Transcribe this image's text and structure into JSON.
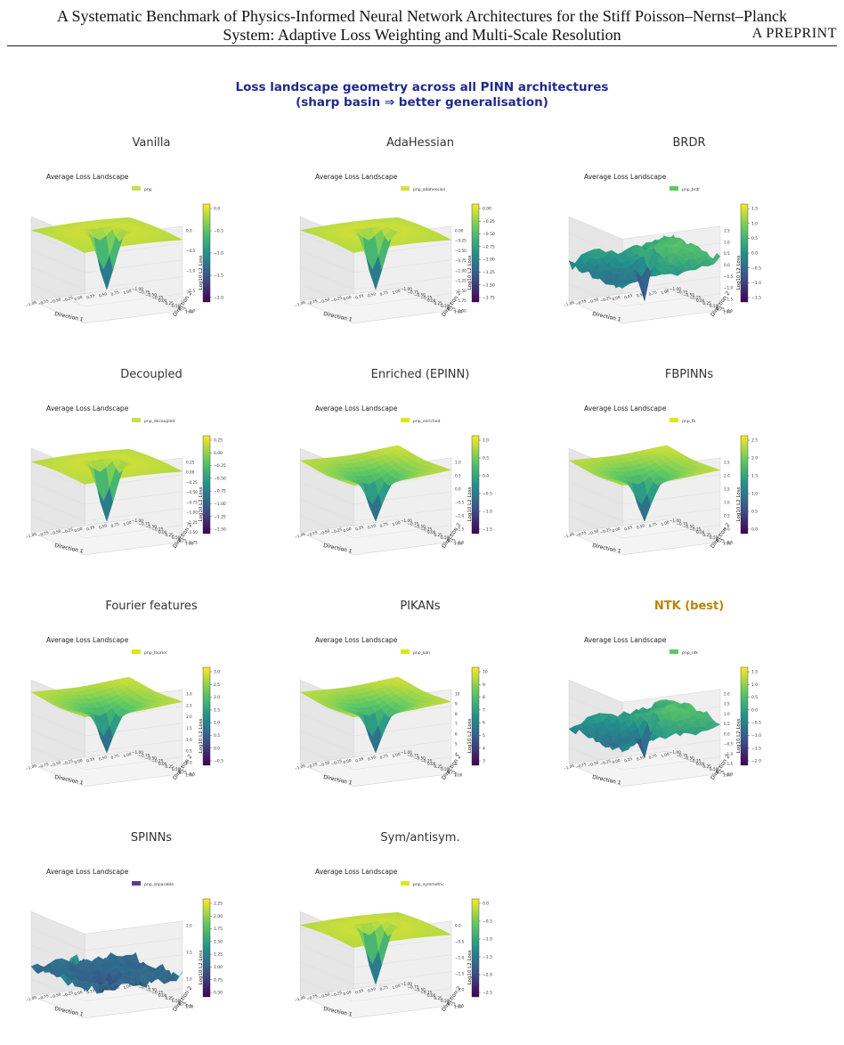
{
  "header": {
    "line1": "A Systematic Benchmark of Physics-Informed Neural Network Architectures for the Stiff Poisson–Nernst–Planck",
    "line2": "System: Adaptive Loss Weighting and Multi-Scale Resolution",
    "tag": "A PREPRINT"
  },
  "figure": {
    "title_line1": "Loss landscape geometry across all PINN architectures",
    "title_line2": "(sharp basin ⇒ better generalisation)",
    "highlight_color": "#b8860b",
    "title_color": "#1f2a8a"
  },
  "chart_data": [
    {
      "type": "surface",
      "panel_title": "Vanilla",
      "title": "Average Loss Landscape",
      "legend": "pnp",
      "legend_color": "#c9dc57",
      "xlabel": "Direction 1",
      "ylabel": "Direction 2",
      "zlabel": "Log10 L2 Loss",
      "zticks": [
        "0.0",
        "−0.5",
        "−1.0",
        "−1.5",
        "−2.0"
      ],
      "cbar_ticks": [
        "0.0",
        "−0.5",
        "−1.0",
        "−1.5",
        "−2.0"
      ],
      "xticks": [
        "−1.00",
        "−0.75",
        "−0.50",
        "−0.25",
        "0.00",
        "0.25",
        "0.50",
        "0.75",
        "1.00"
      ],
      "yticks": [
        "1.00",
        "0.75",
        "0.50",
        "0.25",
        "0.00",
        "−0.25",
        "−0.50",
        "−0.75",
        "−1.00"
      ],
      "shape": "basin",
      "best": false
    },
    {
      "type": "surface",
      "panel_title": "AdaHessian",
      "title": "Average Loss Landscape",
      "legend": "pnp_adahessian",
      "legend_color": "#d7df45",
      "xlabel": "Direction 1",
      "ylabel": "Direction 2",
      "zlabel": "Log10 L2 Loss",
      "zticks": [
        "0.00",
        "−0.25",
        "−0.50",
        "−0.75",
        "−1.00",
        "−1.25",
        "−1.50",
        "−1.75",
        "−2.00"
      ],
      "cbar_ticks": [
        "0.00",
        "−0.25",
        "−0.50",
        "−0.75",
        "−1.00",
        "−1.25",
        "−1.50",
        "−1.75"
      ],
      "xticks": [
        "−1.00",
        "−0.75",
        "−0.50",
        "−0.25",
        "0.00",
        "0.25",
        "0.50",
        "0.75",
        "1.00"
      ],
      "yticks": [
        "1.00",
        "0.75",
        "0.50",
        "0.25",
        "0.00",
        "−0.25",
        "−0.50",
        "−0.75",
        "−1.00"
      ],
      "shape": "basin",
      "best": false
    },
    {
      "type": "surface",
      "panel_title": "BRDR",
      "title": "Average Loss Landscape",
      "legend": "pnp_brdr",
      "legend_color": "#5ec962",
      "xlabel": "Direction 1",
      "ylabel": "Direction 2",
      "zlabel": "Log10 L2 Loss",
      "zticks": [
        "1.5",
        "1.0",
        "0.5",
        "0.0",
        "−0.5",
        "−1.0",
        "−1.5",
        "−2.0"
      ],
      "cbar_ticks": [
        "1.5",
        "1.0",
        "0.5",
        "0.0",
        "−0.5",
        "−1.0",
        "−1.5"
      ],
      "xticks": [
        "−1.00",
        "−0.75",
        "−0.50",
        "−0.25",
        "0.00",
        "0.25",
        "0.50",
        "0.75",
        "1.00"
      ],
      "yticks": [
        "1.00",
        "0.75",
        "0.50",
        "0.25",
        "0.00",
        "−0.25",
        "−0.50",
        "−0.75",
        "−1.00"
      ],
      "shape": "rough",
      "best": false
    },
    {
      "type": "surface",
      "panel_title": "Decoupled",
      "title": "Average Loss Landscape",
      "legend": "pnp_decoupled",
      "legend_color": "#c9dc57",
      "xlabel": "Direction 1",
      "ylabel": "Direction 2",
      "zlabel": "Log10 L2 Loss",
      "zticks": [
        "0.25",
        "0.00",
        "−0.25",
        "−0.50",
        "−0.75",
        "−1.00",
        "−1.25",
        "−1.50",
        "−1.75"
      ],
      "cbar_ticks": [
        "0.25",
        "0.00",
        "−0.25",
        "−0.50",
        "−0.75",
        "−1.00",
        "−1.25",
        "−1.50"
      ],
      "xticks": [
        "−1.00",
        "−0.75",
        "−0.50",
        "−0.25",
        "0.00",
        "0.25",
        "0.50",
        "0.75",
        "1.00"
      ],
      "yticks": [
        "1.00",
        "0.75",
        "0.50",
        "0.25",
        "0.00",
        "−0.25",
        "−0.50",
        "−0.75",
        "−1.00"
      ],
      "shape": "basin",
      "best": false
    },
    {
      "type": "surface",
      "panel_title": "Enriched (EPINN)",
      "title": "Average Loss Landscape",
      "legend": "pnp_enriched",
      "legend_color": "#e3e418",
      "xlabel": "Direction 1",
      "ylabel": "Direction 2",
      "zlabel": "Log10 L2 Loss",
      "zticks": [
        "1.0",
        "0.5",
        "0.0",
        "−0.5",
        "−1.0",
        "−1.5",
        "−2.0"
      ],
      "cbar_ticks": [
        "1.0",
        "0.5",
        "0.0",
        "−0.5",
        "−1.0",
        "−1.5"
      ],
      "xticks": [
        "−1.00",
        "−0.75",
        "−0.50",
        "−0.25",
        "0.00",
        "0.25",
        "0.50",
        "0.75",
        "1.00"
      ],
      "yticks": [
        "1.00",
        "0.75",
        "0.50",
        "0.25",
        "0.00",
        "−0.25",
        "−0.50",
        "−0.75",
        "−1.00"
      ],
      "shape": "funnel",
      "best": false
    },
    {
      "type": "surface",
      "panel_title": "FBPINNs",
      "title": "Average Loss Landscape",
      "legend": "pnp_fb",
      "legend_color": "#e3e418",
      "xlabel": "Direction 1",
      "ylabel": "Direction 2",
      "zlabel": "Log10 L2 Loss",
      "zticks": [
        "2.5",
        "2.0",
        "1.5",
        "1.0",
        "0.5",
        "0.0",
        "−0.5"
      ],
      "cbar_ticks": [
        "2.5",
        "2.0",
        "1.5",
        "1.0",
        "0.5",
        "0.0"
      ],
      "xticks": [
        "−1.00",
        "−0.75",
        "−0.50",
        "−0.25",
        "0.00",
        "0.25",
        "0.50",
        "0.75",
        "1.00"
      ],
      "yticks": [
        "1.00",
        "0.75",
        "0.50",
        "0.25",
        "0.00",
        "−0.25",
        "−0.50",
        "−0.75",
        "−1.00"
      ],
      "shape": "funnel",
      "best": false
    },
    {
      "type": "surface",
      "panel_title": "Fourier features",
      "title": "Average Loss Landscape",
      "legend": "pnp_fourier",
      "legend_color": "#e3e418",
      "xlabel": "Direction 1",
      "ylabel": "Direction 2",
      "zlabel": "Log10 L2 Loss",
      "zticks": [
        "3.0",
        "2.5",
        "2.0",
        "1.5",
        "1.0",
        "0.5",
        "0.0",
        "−0.5"
      ],
      "cbar_ticks": [
        "3.0",
        "2.5",
        "2.0",
        "1.5",
        "1.0",
        "0.5",
        "0.0",
        "−0.5"
      ],
      "xticks": [
        "−1.00",
        "−0.75",
        "−0.50",
        "−0.25",
        "0.00",
        "0.25",
        "0.50",
        "0.75",
        "1.00"
      ],
      "yticks": [
        "1.00",
        "0.75",
        "0.50",
        "0.25",
        "0.00",
        "−0.25",
        "−0.50",
        "−0.75",
        "−1.00"
      ],
      "shape": "funnel",
      "best": false
    },
    {
      "type": "surface",
      "panel_title": "PIKANs",
      "title": "Average Loss Landscape",
      "legend": "pnp_kan",
      "legend_color": "#e3e418",
      "xlabel": "Direction 1",
      "ylabel": "Direction 2",
      "zlabel": "Log10 L2 Loss",
      "zticks": [
        "10",
        "9",
        "8",
        "7",
        "6",
        "5",
        "4",
        "3",
        "2"
      ],
      "cbar_ticks": [
        "10",
        "9",
        "8",
        "7",
        "6",
        "5",
        "4",
        "3"
      ],
      "xticks": [
        "−1.00",
        "−0.75",
        "−0.50",
        "−0.25",
        "0.00",
        "0.25",
        "0.50",
        "0.75",
        "1.00"
      ],
      "yticks": [
        "1.00",
        "0.75",
        "0.50",
        "0.25",
        "0.00",
        "−0.25",
        "−0.50",
        "−0.75",
        "−1.00"
      ],
      "shape": "funnel",
      "best": false
    },
    {
      "type": "surface",
      "panel_title": "NTK (best)",
      "title": "Average Loss Landscape",
      "legend": "pnp_ntk",
      "legend_color": "#5ec962",
      "xlabel": "Direction 1",
      "ylabel": "Direction 2",
      "zlabel": "Log10 L2 Loss",
      "zticks": [
        "2.0",
        "1.5",
        "1.0",
        "0.5",
        "0.0",
        "−0.5",
        "−1.0",
        "−1.5",
        "−2.0"
      ],
      "cbar_ticks": [
        "1.5",
        "1.0",
        "0.5",
        "0.0",
        "−0.5",
        "−1.0",
        "−1.5",
        "−2.0"
      ],
      "xticks": [
        "−1.00",
        "−0.75",
        "−0.50",
        "−0.25",
        "0.00",
        "0.25",
        "0.50",
        "0.75",
        "1.00"
      ],
      "yticks": [
        "1.00",
        "0.75",
        "0.50",
        "0.25",
        "0.00",
        "−0.25",
        "−0.50",
        "−0.75",
        "−1.00"
      ],
      "shape": "rough",
      "best": true
    },
    {
      "type": "surface",
      "panel_title": "SPINNs",
      "title": "Average Loss Landscape",
      "legend": "pnp_separable",
      "legend_color": "#5a3d8f",
      "xlabel": "Direction 1",
      "ylabel": "Direction 2",
      "zlabel": "Log10 L2 Loss",
      "zticks": [
        "2.0",
        "1.5",
        "1.0",
        "0.5"
      ],
      "cbar_ticks": [
        "2.25",
        "2.00",
        "1.75",
        "1.50",
        "1.25",
        "1.00",
        "0.75",
        "0.50"
      ],
      "xticks": [
        "−1.00",
        "−0.75",
        "−0.50",
        "−0.25",
        "0.00",
        "0.25",
        "0.50",
        "0.75",
        "1.00"
      ],
      "yticks": [
        "1.00",
        "0.75",
        "0.50",
        "0.25",
        "0.00",
        "−0.25",
        "−0.50",
        "−0.75",
        "−1.00"
      ],
      "shape": "spiky",
      "best": false
    },
    {
      "type": "surface",
      "panel_title": "Sym/antisym.",
      "title": "Average Loss Landscape",
      "legend": "pnp_symmetric",
      "legend_color": "#e3e418",
      "xlabel": "Direction 1",
      "ylabel": "Direction 2",
      "zlabel": "Log10 L2 Loss",
      "zticks": [
        "0.0",
        "−0.5",
        "−1.0",
        "−1.5",
        "−2.0",
        "−2.5"
      ],
      "cbar_ticks": [
        "0.0",
        "−0.5",
        "−1.0",
        "−1.5",
        "−2.0",
        "−2.5"
      ],
      "xticks": [
        "−1.00",
        "−0.75",
        "−0.50",
        "−0.25",
        "0.00",
        "0.25",
        "0.50",
        "0.75",
        "1.00"
      ],
      "yticks": [
        "1.00",
        "0.75",
        "0.50",
        "0.25",
        "0.00",
        "−0.25",
        "−0.50",
        "−0.75",
        "−1.00"
      ],
      "shape": "basin",
      "best": false
    }
  ]
}
